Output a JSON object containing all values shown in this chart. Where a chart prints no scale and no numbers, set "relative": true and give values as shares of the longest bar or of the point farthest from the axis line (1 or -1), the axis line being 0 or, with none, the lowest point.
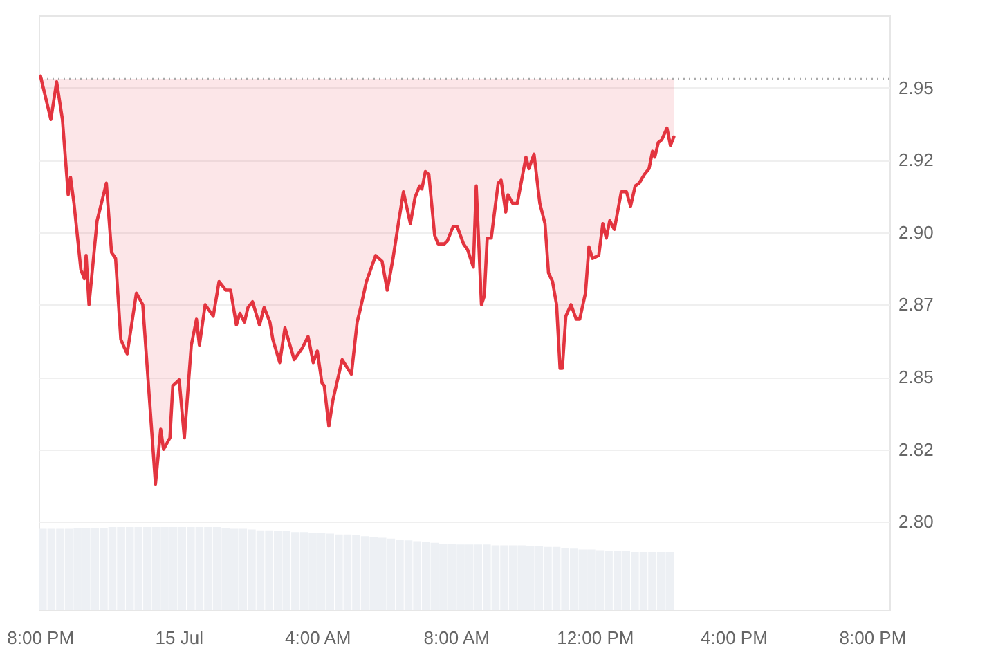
{
  "chart_data": [
    {
      "type": "line",
      "x": [
        "--07-14T20:01",
        "--07-14T20:19",
        "--07-14T20:29",
        "--07-14T20:39",
        "--07-14T20:49",
        "--07-14T20:53",
        "--07-14T20:59",
        "--07-14T21:11",
        "--07-14T21:17",
        "--07-14T21:20",
        "--07-14T21:25",
        "--07-14T21:39",
        "--07-14T21:55",
        "--07-14T22:04",
        "--07-14T22:11",
        "--07-14T22:20",
        "--07-14T22:31",
        "--07-14T22:47",
        "--07-14T22:58",
        "--07-14T23:20",
        "--07-14T23:29",
        "--07-14T23:34",
        "--07-14T23:45",
        "--07-14T23:50",
        "--07-15T00:01",
        "--07-15T00:10",
        "--07-15T00:22",
        "--07-15T00:31",
        "--07-15T00:36",
        "--07-15T00:46",
        "--07-15T01:00",
        "--07-15T01:10",
        "--07-15T01:22",
        "--07-15T01:30",
        "--07-15T01:40",
        "--07-15T01:46",
        "--07-15T01:54",
        "--07-15T02:00",
        "--07-15T02:08",
        "--07-15T02:20",
        "--07-15T02:28",
        "--07-15T02:38",
        "--07-15T02:43",
        "--07-15T02:55",
        "--07-15T03:04",
        "--07-15T03:20",
        "--07-15T03:34",
        "--07-15T03:44",
        "--07-15T03:53",
        "--07-15T04:00",
        "--07-15T04:08",
        "--07-15T04:12",
        "--07-15T04:20",
        "--07-15T04:27",
        "--07-15T04:43",
        "--07-15T04:59",
        "--07-15T05:09",
        "--07-15T05:15",
        "--07-15T05:25",
        "--07-15T05:41",
        "--07-15T05:52",
        "--07-15T06:01",
        "--07-15T06:11",
        "--07-15T06:21",
        "--07-15T06:29",
        "--07-15T06:41",
        "--07-15T06:49",
        "--07-15T06:57",
        "--07-15T07:01",
        "--07-15T07:07",
        "--07-15T07:13",
        "--07-15T07:23",
        "--07-15T07:29",
        "--07-15T07:40",
        "--07-15T07:45",
        "--07-15T07:55",
        "--07-15T08:02",
        "--07-15T08:13",
        "--07-15T08:20",
        "--07-15T08:30",
        "--07-15T08:35",
        "--07-15T08:44",
        "--07-15T08:49",
        "--07-15T08:54",
        "--07-15T09:01",
        "--07-15T09:06",
        "--07-15T09:13",
        "--07-15T09:18",
        "--07-15T09:26",
        "--07-15T09:30",
        "--07-15T09:38",
        "--07-15T09:46",
        "--07-15T10:01",
        "--07-15T10:06",
        "--07-15T10:15",
        "--07-15T10:25",
        "--07-15T10:34",
        "--07-15T10:40",
        "--07-15T10:47",
        "--07-15T10:54",
        "--07-15T11:00",
        "--07-15T11:04",
        "--07-15T11:10",
        "--07-15T11:19",
        "--07-15T11:28",
        "--07-15T11:34",
        "--07-15T11:44",
        "--07-15T11:50",
        "--07-15T11:56",
        "--07-15T12:07",
        "--07-15T12:14",
        "--07-15T12:20",
        "--07-15T12:26",
        "--07-15T12:34",
        "--07-15T12:46",
        "--07-15T12:55",
        "--07-15T13:02",
        "--07-15T13:10",
        "--07-15T13:17",
        "--07-15T13:26",
        "--07-15T13:34",
        "--07-15T13:40",
        "--07-15T13:44",
        "--07-15T13:50",
        "--07-15T13:56",
        "--07-15T14:05",
        "--07-15T14:11",
        "--07-15T14:17"
      ],
      "series": [
        {
          "color": "#e3343f",
          "values": [
            2.954,
            2.939,
            2.952,
            2.939,
            2.913,
            2.919,
            2.91,
            2.887,
            2.884,
            2.892,
            2.875,
            2.904,
            2.917,
            2.893,
            2.891,
            2.863,
            2.858,
            2.879,
            2.875,
            2.813,
            2.832,
            2.825,
            2.829,
            2.847,
            2.849,
            2.829,
            2.861,
            2.87,
            2.861,
            2.875,
            2.871,
            2.883,
            2.88,
            2.88,
            2.868,
            2.872,
            2.869,
            2.874,
            2.876,
            2.868,
            2.874,
            2.869,
            2.863,
            2.855,
            2.867,
            2.856,
            2.86,
            2.864,
            2.855,
            2.859,
            2.848,
            2.847,
            2.833,
            2.842,
            2.856,
            2.851,
            2.869,
            2.874,
            2.883,
            2.892,
            2.89,
            2.88,
            2.891,
            2.904,
            2.914,
            2.903,
            2.912,
            2.916,
            2.915,
            2.921,
            2.92,
            2.899,
            2.896,
            2.896,
            2.897,
            2.902,
            2.902,
            2.896,
            2.894,
            2.888,
            2.916,
            2.875,
            2.878,
            2.898,
            2.898,
            2.906,
            2.917,
            2.918,
            2.907,
            2.913,
            2.91,
            2.91,
            2.926,
            2.922,
            2.927,
            2.91,
            2.903,
            2.886,
            2.883,
            2.875,
            2.853,
            2.853,
            2.871,
            2.875,
            2.87,
            2.87,
            2.879,
            2.895,
            2.891,
            2.892,
            2.903,
            2.898,
            2.904,
            2.901,
            2.914,
            2.914,
            2.909,
            2.916,
            2.917,
            2.92,
            2.922,
            2.928,
            2.926,
            2.931,
            2.932,
            2.936,
            2.93,
            2.933
          ],
          "lower": [
            2.953,
            2.939,
            2.952,
            2.939,
            2.913,
            2.919,
            2.91,
            2.887,
            2.884,
            2.892,
            2.875,
            2.904,
            2.917,
            2.893,
            2.891,
            2.863,
            2.858,
            2.879,
            2.875,
            2.813,
            2.832,
            2.825,
            2.829,
            2.847,
            2.849,
            2.829,
            2.861,
            2.87,
            2.861,
            2.875,
            2.871,
            2.883,
            2.88,
            2.88,
            2.868,
            2.872,
            2.869,
            2.874,
            2.876,
            2.868,
            2.874,
            2.869,
            2.863,
            2.855,
            2.867,
            2.856,
            2.86,
            2.864,
            2.855,
            2.859,
            2.848,
            2.847,
            2.833,
            2.842,
            2.856,
            2.851,
            2.869,
            2.874,
            2.883,
            2.892,
            2.89,
            2.88,
            2.891,
            2.904,
            2.914,
            2.903,
            2.912,
            2.916,
            2.915,
            2.921,
            2.92,
            2.899,
            2.896,
            2.896,
            2.897,
            2.902,
            2.902,
            2.896,
            2.894,
            2.888,
            2.916,
            2.875,
            2.878,
            2.898,
            2.898,
            2.906,
            2.917,
            2.918,
            2.907,
            2.913,
            2.91,
            2.91,
            2.926,
            2.922,
            2.927,
            2.91,
            2.903,
            2.886,
            2.883,
            2.875,
            2.853,
            2.853,
            2.871,
            2.875,
            2.87,
            2.87,
            2.879,
            2.895,
            2.891,
            2.892,
            2.903,
            2.898,
            2.904,
            2.901,
            2.914,
            2.914,
            2.909,
            2.916,
            2.917,
            2.92,
            2.922,
            2.928,
            2.926,
            2.931,
            2.932,
            2.936,
            2.93,
            2.933
          ],
          "upper": [
            2.953,
            2.953,
            2.953,
            2.953,
            2.953,
            2.953,
            2.953,
            2.953,
            2.953,
            2.953,
            2.953,
            2.953,
            2.953,
            2.953,
            2.953,
            2.953,
            2.953,
            2.953,
            2.953,
            2.953,
            2.953,
            2.953,
            2.953,
            2.953,
            2.953,
            2.953,
            2.953,
            2.953,
            2.953,
            2.953,
            2.953,
            2.953,
            2.953,
            2.953,
            2.953,
            2.953,
            2.953,
            2.953,
            2.953,
            2.953,
            2.953,
            2.953,
            2.953,
            2.953,
            2.953,
            2.953,
            2.953,
            2.953,
            2.953,
            2.953,
            2.953,
            2.953,
            2.953,
            2.953,
            2.953,
            2.953,
            2.953,
            2.953,
            2.953,
            2.953,
            2.953,
            2.953,
            2.953,
            2.953,
            2.953,
            2.953,
            2.953,
            2.953,
            2.953,
            2.953,
            2.953,
            2.953,
            2.953,
            2.953,
            2.953,
            2.953,
            2.953,
            2.953,
            2.953,
            2.953,
            2.953,
            2.953,
            2.953,
            2.953,
            2.953,
            2.953,
            2.953,
            2.953,
            2.953,
            2.953,
            2.953,
            2.953,
            2.953,
            2.953,
            2.953,
            2.953,
            2.953,
            2.953,
            2.953,
            2.953,
            2.953,
            2.953,
            2.953,
            2.953,
            2.953,
            2.953,
            2.953,
            2.953,
            2.953,
            2.953,
            2.953,
            2.953,
            2.953,
            2.953,
            2.953,
            2.953,
            2.953,
            2.953,
            2.953,
            2.953,
            2.953,
            2.953,
            2.953,
            2.953,
            2.953,
            2.953,
            2.953,
            2.953
          ]
        }
      ],
      "xlim": [
        "--07-14T19:58",
        "--07-15T20:30"
      ],
      "xticks": [
        {
          "value": "--07-14T20:00",
          "label": "8:00 PM"
        },
        {
          "value": "--07-15T00:00",
          "label": "15 Jul"
        },
        {
          "value": "--07-15T04:00",
          "label": "4:00 AM"
        },
        {
          "value": "--07-15T08:00",
          "label": "8:00 AM"
        },
        {
          "value": "--07-15T12:00",
          "label": "12:00 PM"
        },
        {
          "value": "--07-15T16:00",
          "label": "4:00 PM"
        },
        {
          "value": "--07-15T20:00",
          "label": "8:00 PM"
        }
      ],
      "ylim": [
        2.7695,
        2.975
      ],
      "yticks": [
        {
          "value": 2.8,
          "label": "2.80"
        },
        {
          "value": 2.825,
          "label": "2.82"
        },
        2.85,
        {
          "value": 2.875,
          "label": "2.87"
        },
        {
          "value": 2.9,
          "label": "2.90"
        },
        {
          "value": 2.925,
          "label": "2.92"
        },
        2.95
      ],
      "ref_lines": [
        {
          "axis": "y",
          "value": 2.953,
          "color": "#aaaaaa",
          "line_style": "dotted"
        }
      ],
      "grid": "y"
    },
    {
      "type": "bar",
      "color": "#edf0f4",
      "relative": true,
      "categories": [
        null,
        null,
        null,
        null,
        null,
        null,
        null,
        null,
        null,
        null,
        null,
        null,
        null,
        null,
        null,
        null,
        null,
        null,
        null,
        null,
        null,
        null,
        null,
        null,
        null,
        null,
        null,
        null,
        null,
        null,
        null,
        null,
        null,
        null,
        null,
        null,
        null,
        null,
        null,
        null,
        null,
        null,
        null,
        null,
        null,
        null,
        null,
        null,
        null,
        null,
        null,
        null,
        null,
        null,
        null,
        null,
        null,
        null,
        null,
        null,
        null,
        null,
        null,
        null,
        null,
        null,
        null,
        null,
        null,
        null,
        null,
        null,
        null
      ],
      "values": [
        0.98,
        0.98,
        0.98,
        0.98,
        0.99,
        0.99,
        0.99,
        0.99,
        1.0,
        1.0,
        1.0,
        1.0,
        1.0,
        1.0,
        1.0,
        1.0,
        1.0,
        1.0,
        1.0,
        1.0,
        1.0,
        0.99,
        0.98,
        0.98,
        0.97,
        0.96,
        0.96,
        0.95,
        0.95,
        0.94,
        0.94,
        0.93,
        0.93,
        0.92,
        0.91,
        0.91,
        0.9,
        0.89,
        0.88,
        0.87,
        0.86,
        0.85,
        0.84,
        0.83,
        0.82,
        0.81,
        0.8,
        0.8,
        0.79,
        0.79,
        0.79,
        0.79,
        0.78,
        0.78,
        0.78,
        0.78,
        0.77,
        0.77,
        0.76,
        0.76,
        0.75,
        0.74,
        0.73,
        0.73,
        0.72,
        0.71,
        0.71,
        0.71,
        0.7,
        0.7,
        0.7,
        0.7,
        0.7
      ]
    }
  ]
}
